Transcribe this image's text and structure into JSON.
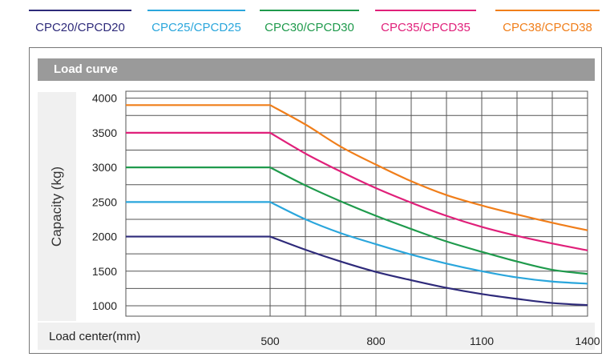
{
  "panel": {
    "title": "Load curve"
  },
  "chart_data": {
    "type": "line",
    "ylabel": "Capacity (kg)",
    "xlabel": "Load center(mm)",
    "ylim": [
      850,
      4100
    ],
    "xlim": [
      0,
      1400
    ],
    "yticks": [
      "1000",
      "1500",
      "2000",
      "2500",
      "3000",
      "3500",
      "4000"
    ],
    "xticks": [
      "500",
      "800",
      "1100",
      "1400"
    ],
    "grid": true,
    "legend_position": "top",
    "series": [
      {
        "name": "CPC20/CPCD20",
        "color": "#2e2a7a",
        "points": [
          [
            0,
            2000
          ],
          [
            500,
            2000
          ],
          [
            600,
            1810
          ],
          [
            700,
            1640
          ],
          [
            800,
            1490
          ],
          [
            900,
            1370
          ],
          [
            1000,
            1260
          ],
          [
            1100,
            1170
          ],
          [
            1200,
            1100
          ],
          [
            1300,
            1040
          ],
          [
            1400,
            1010
          ]
        ]
      },
      {
        "name": "CPC25/CPCD25",
        "color": "#2aa6dc",
        "points": [
          [
            0,
            2500
          ],
          [
            500,
            2500
          ],
          [
            600,
            2250
          ],
          [
            700,
            2050
          ],
          [
            800,
            1890
          ],
          [
            900,
            1740
          ],
          [
            1000,
            1610
          ],
          [
            1100,
            1500
          ],
          [
            1200,
            1410
          ],
          [
            1300,
            1350
          ],
          [
            1400,
            1320
          ]
        ]
      },
      {
        "name": "CPC30/CPCD30",
        "color": "#1f9a4c",
        "points": [
          [
            0,
            3000
          ],
          [
            500,
            3000
          ],
          [
            600,
            2740
          ],
          [
            700,
            2510
          ],
          [
            800,
            2300
          ],
          [
            900,
            2110
          ],
          [
            1000,
            1930
          ],
          [
            1100,
            1780
          ],
          [
            1200,
            1640
          ],
          [
            1300,
            1520
          ],
          [
            1400,
            1460
          ]
        ]
      },
      {
        "name": "CPC35/CPCD35",
        "color": "#e0207a",
        "points": [
          [
            0,
            3500
          ],
          [
            500,
            3500
          ],
          [
            600,
            3200
          ],
          [
            700,
            2940
          ],
          [
            800,
            2700
          ],
          [
            900,
            2490
          ],
          [
            1000,
            2300
          ],
          [
            1100,
            2140
          ],
          [
            1200,
            2010
          ],
          [
            1300,
            1900
          ],
          [
            1400,
            1800
          ]
        ]
      },
      {
        "name": "CPC38/CPCD38",
        "color": "#f07e1a",
        "points": [
          [
            0,
            3900
          ],
          [
            500,
            3900
          ],
          [
            600,
            3620
          ],
          [
            700,
            3300
          ],
          [
            800,
            3040
          ],
          [
            900,
            2800
          ],
          [
            1000,
            2600
          ],
          [
            1100,
            2450
          ],
          [
            1200,
            2320
          ],
          [
            1300,
            2200
          ],
          [
            1400,
            2090
          ]
        ]
      }
    ]
  }
}
